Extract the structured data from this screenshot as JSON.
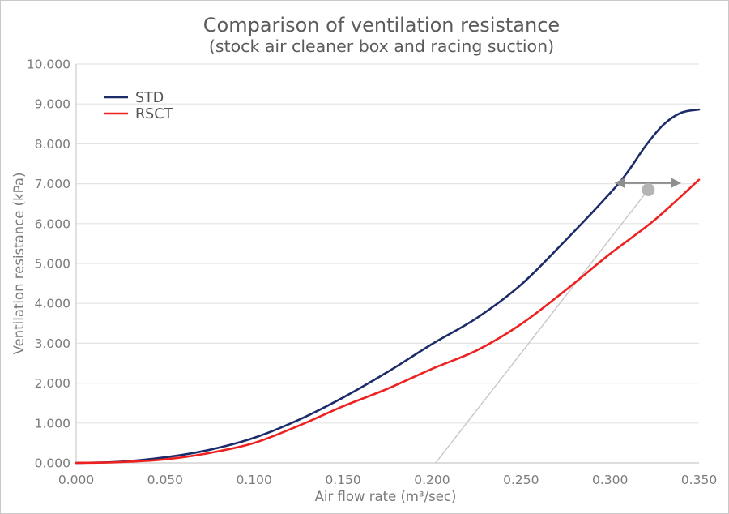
{
  "page": {
    "background_color": "#ffffff",
    "border_color": "#c9c9c9"
  },
  "chart_data": {
    "type": "line",
    "title": "Comparison of ventilation resistance",
    "subtitle": "(stock air cleaner box and racing suction)",
    "xlabel": "Air flow rate (m³/sec)",
    "ylabel": "Ventilation resistance (kPa)",
    "xlim": [
      0,
      0.35
    ],
    "ylim": [
      0,
      10
    ],
    "x_ticks": [
      0.0,
      0.05,
      0.1,
      0.15,
      0.2,
      0.25,
      0.3,
      0.35
    ],
    "x_tick_labels": [
      "0.000",
      "0.050",
      "0.100",
      "0.150",
      "0.200",
      "0.250",
      "0.300",
      "0.350"
    ],
    "y_ticks": [
      0,
      1,
      2,
      3,
      4,
      5,
      6,
      7,
      8,
      9,
      10
    ],
    "y_tick_labels": [
      "0.000",
      "1.000",
      "2.000",
      "3.000",
      "4.000",
      "5.000",
      "6.000",
      "7.000",
      "8.000",
      "9.000",
      "10.000"
    ],
    "grid": "horizontal-only",
    "gridline_color": "#e4e4e4",
    "axis_line_color": "#d2d2d2",
    "legend_position": "top-left-inside",
    "series": [
      {
        "name": "STD",
        "color": "#1b2c69",
        "points": [
          [
            0.0,
            0.0
          ],
          [
            0.025,
            0.03
          ],
          [
            0.05,
            0.14
          ],
          [
            0.075,
            0.33
          ],
          [
            0.1,
            0.63
          ],
          [
            0.125,
            1.08
          ],
          [
            0.15,
            1.64
          ],
          [
            0.175,
            2.28
          ],
          [
            0.2,
            2.98
          ],
          [
            0.225,
            3.63
          ],
          [
            0.25,
            4.47
          ],
          [
            0.275,
            5.58
          ],
          [
            0.3,
            6.76
          ],
          [
            0.31,
            7.3
          ],
          [
            0.32,
            7.95
          ],
          [
            0.33,
            8.48
          ],
          [
            0.34,
            8.78
          ],
          [
            0.35,
            8.86
          ]
        ]
      },
      {
        "name": "RSCT",
        "color": "#ee2120",
        "points": [
          [
            0.0,
            0.0
          ],
          [
            0.025,
            0.02
          ],
          [
            0.05,
            0.09
          ],
          [
            0.075,
            0.25
          ],
          [
            0.1,
            0.5
          ],
          [
            0.125,
            0.93
          ],
          [
            0.15,
            1.42
          ],
          [
            0.175,
            1.86
          ],
          [
            0.2,
            2.36
          ],
          [
            0.225,
            2.82
          ],
          [
            0.25,
            3.48
          ],
          [
            0.275,
            4.33
          ],
          [
            0.3,
            5.24
          ],
          [
            0.325,
            6.09
          ],
          [
            0.35,
            7.1
          ]
        ]
      }
    ],
    "annotations": {
      "double_arrow": {
        "y": 7.02,
        "x_from": 0.3025,
        "x_to": 0.34,
        "color": "#8e8e8e"
      },
      "marker_dot": {
        "x": 0.3215,
        "y": 6.85,
        "radius_px": 8,
        "color": "#b4b4b4"
      },
      "leader_line": {
        "from_x": 0.3215,
        "from_y": 6.85,
        "to_x": 0.202,
        "to_y": 0.0,
        "color": "#c6c6c6"
      }
    }
  }
}
